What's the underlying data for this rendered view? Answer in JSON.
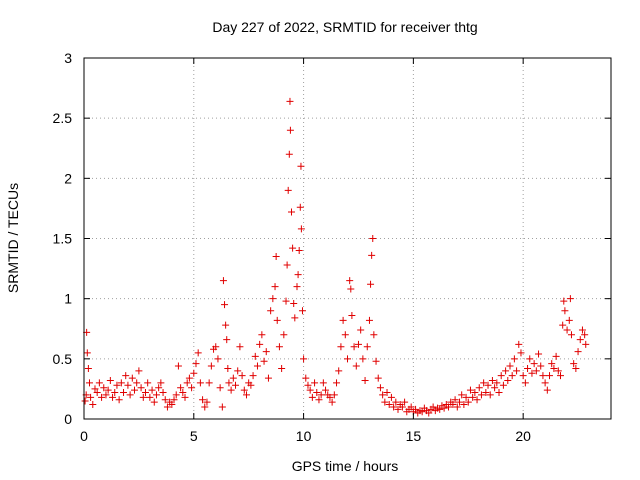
{
  "chart_data": {
    "type": "scatter",
    "title": "Day 227 of 2022, SRMTID for receiver thtg",
    "xlabel": "GPS time / hours",
    "ylabel": "SRMTID / TECUs",
    "xlim": [
      0,
      24
    ],
    "ylim": [
      0,
      3
    ],
    "x_ticks": [
      0,
      5,
      10,
      15,
      20
    ],
    "x_tick_labels": [
      "0",
      "5",
      "10",
      "15",
      "20"
    ],
    "y_ticks": [
      0,
      0.5,
      1,
      1.5,
      2,
      2.5,
      3
    ],
    "y_tick_labels": [
      "0",
      "0.5",
      "1",
      "1.5",
      "2",
      "2.5",
      "3"
    ],
    "grid": true,
    "legend": "none",
    "marker": "+",
    "series": [
      {
        "name": "SRMTID thtg",
        "color": "#e00000",
        "points": [
          [
            0.05,
            0.15
          ],
          [
            0.1,
            0.2
          ],
          [
            0.12,
            0.72
          ],
          [
            0.15,
            0.55
          ],
          [
            0.2,
            0.42
          ],
          [
            0.25,
            0.3
          ],
          [
            0.3,
            0.18
          ],
          [
            0.4,
            0.12
          ],
          [
            0.5,
            0.25
          ],
          [
            0.6,
            0.22
          ],
          [
            0.7,
            0.3
          ],
          [
            0.8,
            0.18
          ],
          [
            0.9,
            0.26
          ],
          [
            1.0,
            0.2
          ],
          [
            1.1,
            0.24
          ],
          [
            1.2,
            0.32
          ],
          [
            1.3,
            0.18
          ],
          [
            1.4,
            0.22
          ],
          [
            1.5,
            0.28
          ],
          [
            1.6,
            0.16
          ],
          [
            1.7,
            0.3
          ],
          [
            1.8,
            0.22
          ],
          [
            1.9,
            0.36
          ],
          [
            2.0,
            0.28
          ],
          [
            2.1,
            0.2
          ],
          [
            2.2,
            0.34
          ],
          [
            2.3,
            0.24
          ],
          [
            2.4,
            0.3
          ],
          [
            2.5,
            0.4
          ],
          [
            2.6,
            0.26
          ],
          [
            2.7,
            0.18
          ],
          [
            2.8,
            0.22
          ],
          [
            2.9,
            0.3
          ],
          [
            3.0,
            0.18
          ],
          [
            3.1,
            0.24
          ],
          [
            3.2,
            0.14
          ],
          [
            3.3,
            0.2
          ],
          [
            3.4,
            0.26
          ],
          [
            3.5,
            0.3
          ],
          [
            3.6,
            0.22
          ],
          [
            3.7,
            0.16
          ],
          [
            3.8,
            0.1
          ],
          [
            3.9,
            0.14
          ],
          [
            4.0,
            0.12
          ],
          [
            4.1,
            0.16
          ],
          [
            4.2,
            0.2
          ],
          [
            4.3,
            0.44
          ],
          [
            4.4,
            0.26
          ],
          [
            4.5,
            0.22
          ],
          [
            4.6,
            0.18
          ],
          [
            4.7,
            0.3
          ],
          [
            4.8,
            0.34
          ],
          [
            4.9,
            0.26
          ],
          [
            5.0,
            0.38
          ],
          [
            5.1,
            0.46
          ],
          [
            5.2,
            0.55
          ],
          [
            5.3,
            0.3
          ],
          [
            5.4,
            0.16
          ],
          [
            5.5,
            0.1
          ],
          [
            5.6,
            0.14
          ],
          [
            5.7,
            0.3
          ],
          [
            5.8,
            0.44
          ],
          [
            5.9,
            0.58
          ],
          [
            6.0,
            0.6
          ],
          [
            6.1,
            0.5
          ],
          [
            6.2,
            0.26
          ],
          [
            6.3,
            0.1
          ],
          [
            6.35,
            1.15
          ],
          [
            6.4,
            0.95
          ],
          [
            6.45,
            0.78
          ],
          [
            6.5,
            0.66
          ],
          [
            6.55,
            0.42
          ],
          [
            6.6,
            0.3
          ],
          [
            6.7,
            0.24
          ],
          [
            6.8,
            0.34
          ],
          [
            6.9,
            0.28
          ],
          [
            7.0,
            0.4
          ],
          [
            7.1,
            0.6
          ],
          [
            7.2,
            0.36
          ],
          [
            7.3,
            0.24
          ],
          [
            7.4,
            0.2
          ],
          [
            7.5,
            0.3
          ],
          [
            7.6,
            0.28
          ],
          [
            7.7,
            0.36
          ],
          [
            7.8,
            0.52
          ],
          [
            7.9,
            0.44
          ],
          [
            8.0,
            0.62
          ],
          [
            8.1,
            0.7
          ],
          [
            8.2,
            0.48
          ],
          [
            8.3,
            0.56
          ],
          [
            8.4,
            0.34
          ],
          [
            8.5,
            0.9
          ],
          [
            8.6,
            1.0
          ],
          [
            8.7,
            1.1
          ],
          [
            8.75,
            1.35
          ],
          [
            8.8,
            0.82
          ],
          [
            8.9,
            0.6
          ],
          [
            9.0,
            0.42
          ],
          [
            9.1,
            0.7
          ],
          [
            9.2,
            0.98
          ],
          [
            9.25,
            1.28
          ],
          [
            9.3,
            1.9
          ],
          [
            9.35,
            2.2
          ],
          [
            9.38,
            2.64
          ],
          [
            9.4,
            2.4
          ],
          [
            9.45,
            1.72
          ],
          [
            9.5,
            1.42
          ],
          [
            9.55,
            0.96
          ],
          [
            9.6,
            0.84
          ],
          [
            9.7,
            1.1
          ],
          [
            9.75,
            1.2
          ],
          [
            9.8,
            1.4
          ],
          [
            9.85,
            1.76
          ],
          [
            9.88,
            2.1
          ],
          [
            9.9,
            1.58
          ],
          [
            9.95,
            0.9
          ],
          [
            10.0,
            0.5
          ],
          [
            10.1,
            0.34
          ],
          [
            10.2,
            0.28
          ],
          [
            10.3,
            0.24
          ],
          [
            10.4,
            0.18
          ],
          [
            10.5,
            0.3
          ],
          [
            10.6,
            0.22
          ],
          [
            10.7,
            0.16
          ],
          [
            10.8,
            0.2
          ],
          [
            10.9,
            0.3
          ],
          [
            11.0,
            0.24
          ],
          [
            11.1,
            0.2
          ],
          [
            11.2,
            0.18
          ],
          [
            11.3,
            0.14
          ],
          [
            11.4,
            0.2
          ],
          [
            11.5,
            0.3
          ],
          [
            11.6,
            0.4
          ],
          [
            11.7,
            0.6
          ],
          [
            11.8,
            0.82
          ],
          [
            11.9,
            0.7
          ],
          [
            12.0,
            0.5
          ],
          [
            12.1,
            1.15
          ],
          [
            12.15,
            1.08
          ],
          [
            12.2,
            0.86
          ],
          [
            12.3,
            0.6
          ],
          [
            12.4,
            0.44
          ],
          [
            12.5,
            0.62
          ],
          [
            12.6,
            0.74
          ],
          [
            12.7,
            0.5
          ],
          [
            12.8,
            0.32
          ],
          [
            12.9,
            0.6
          ],
          [
            13.0,
            0.82
          ],
          [
            13.05,
            1.12
          ],
          [
            13.1,
            1.36
          ],
          [
            13.15,
            1.5
          ],
          [
            13.2,
            0.7
          ],
          [
            13.3,
            0.48
          ],
          [
            13.4,
            0.34
          ],
          [
            13.5,
            0.26
          ],
          [
            13.6,
            0.2
          ],
          [
            13.7,
            0.14
          ],
          [
            13.8,
            0.22
          ],
          [
            13.9,
            0.12
          ],
          [
            14.0,
            0.18
          ],
          [
            14.1,
            0.1
          ],
          [
            14.2,
            0.14
          ],
          [
            14.3,
            0.08
          ],
          [
            14.4,
            0.12
          ],
          [
            14.5,
            0.1
          ],
          [
            14.6,
            0.14
          ],
          [
            14.7,
            0.06
          ],
          [
            14.8,
            0.08
          ],
          [
            14.9,
            0.1
          ],
          [
            15.0,
            0.06
          ],
          [
            15.1,
            0.08
          ],
          [
            15.2,
            0.05
          ],
          [
            15.3,
            0.07
          ],
          [
            15.4,
            0.06
          ],
          [
            15.5,
            0.09
          ],
          [
            15.6,
            0.07
          ],
          [
            15.7,
            0.05
          ],
          [
            15.8,
            0.08
          ],
          [
            15.9,
            0.1
          ],
          [
            16.0,
            0.07
          ],
          [
            16.1,
            0.09
          ],
          [
            16.2,
            0.08
          ],
          [
            16.3,
            0.11
          ],
          [
            16.4,
            0.09
          ],
          [
            16.5,
            0.12
          ],
          [
            16.6,
            0.1
          ],
          [
            16.7,
            0.14
          ],
          [
            16.8,
            0.12
          ],
          [
            16.9,
            0.16
          ],
          [
            17.0,
            0.1
          ],
          [
            17.1,
            0.14
          ],
          [
            17.2,
            0.2
          ],
          [
            17.3,
            0.12
          ],
          [
            17.4,
            0.18
          ],
          [
            17.5,
            0.14
          ],
          [
            17.6,
            0.24
          ],
          [
            17.7,
            0.18
          ],
          [
            17.8,
            0.22
          ],
          [
            17.9,
            0.16
          ],
          [
            18.0,
            0.26
          ],
          [
            18.1,
            0.2
          ],
          [
            18.2,
            0.3
          ],
          [
            18.3,
            0.22
          ],
          [
            18.4,
            0.28
          ],
          [
            18.5,
            0.2
          ],
          [
            18.6,
            0.32
          ],
          [
            18.7,
            0.26
          ],
          [
            18.8,
            0.3
          ],
          [
            18.9,
            0.22
          ],
          [
            19.0,
            0.36
          ],
          [
            19.1,
            0.28
          ],
          [
            19.2,
            0.4
          ],
          [
            19.3,
            0.32
          ],
          [
            19.4,
            0.44
          ],
          [
            19.5,
            0.36
          ],
          [
            19.6,
            0.5
          ],
          [
            19.7,
            0.4
          ],
          [
            19.8,
            0.62
          ],
          [
            19.9,
            0.55
          ],
          [
            20.0,
            0.36
          ],
          [
            20.1,
            0.3
          ],
          [
            20.2,
            0.42
          ],
          [
            20.3,
            0.5
          ],
          [
            20.4,
            0.38
          ],
          [
            20.5,
            0.46
          ],
          [
            20.6,
            0.4
          ],
          [
            20.7,
            0.54
          ],
          [
            20.8,
            0.44
          ],
          [
            20.9,
            0.36
          ],
          [
            21.0,
            0.3
          ],
          [
            21.1,
            0.24
          ],
          [
            21.2,
            0.36
          ],
          [
            21.3,
            0.46
          ],
          [
            21.4,
            0.42
          ],
          [
            21.5,
            0.52
          ],
          [
            21.6,
            0.4
          ],
          [
            21.7,
            0.36
          ],
          [
            21.8,
            0.78
          ],
          [
            21.85,
            0.98
          ],
          [
            21.9,
            0.9
          ],
          [
            22.0,
            0.74
          ],
          [
            22.1,
            0.82
          ],
          [
            22.15,
            1.0
          ],
          [
            22.2,
            0.7
          ],
          [
            22.3,
            0.46
          ],
          [
            22.4,
            0.42
          ],
          [
            22.5,
            0.56
          ],
          [
            22.6,
            0.66
          ],
          [
            22.7,
            0.74
          ],
          [
            22.8,
            0.7
          ],
          [
            22.85,
            0.62
          ]
        ]
      }
    ]
  }
}
